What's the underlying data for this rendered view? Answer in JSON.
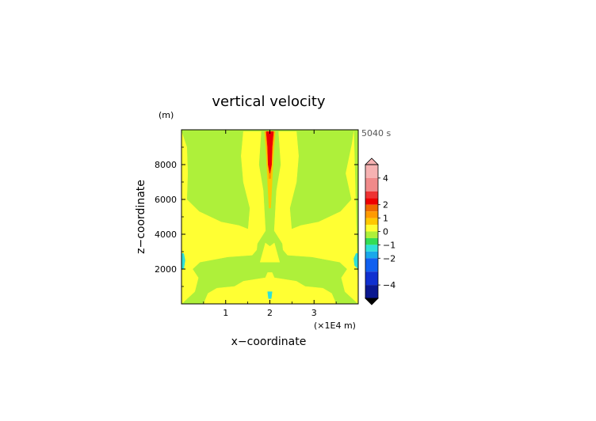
{
  "chart_data": {
    "type": "heatmap",
    "title": "vertical velocity",
    "time_label": "5040 s",
    "xlabel": "x−coordinate",
    "x_unit": "(×1E4 m)",
    "ylabel": "z−coordinate",
    "y_unit": "(m)",
    "xlim": [
      0,
      4.0
    ],
    "ylim": [
      0,
      10000
    ],
    "x_ticks": [
      {
        "value": 1,
        "label": "1"
      },
      {
        "value": 2,
        "label": "2"
      },
      {
        "value": 3,
        "label": "3"
      }
    ],
    "y_ticks": [
      {
        "value": 2000,
        "label": "2000"
      },
      {
        "value": 4000,
        "label": "4000"
      },
      {
        "value": 6000,
        "label": "6000"
      },
      {
        "value": 8000,
        "label": "8000"
      }
    ],
    "colorbar": {
      "range": [
        -5,
        5
      ],
      "labels": [
        {
          "value": 4,
          "label": "4"
        },
        {
          "value": 2,
          "label": "2"
        },
        {
          "value": 1,
          "label": "1"
        },
        {
          "value": 0,
          "label": "0"
        },
        {
          "value": -1,
          "label": "−1"
        },
        {
          "value": -2,
          "label": "−2"
        },
        {
          "value": -4,
          "label": "−4"
        }
      ],
      "levels": [
        {
          "from": 4,
          "to": 5,
          "color": "#f6b2b2"
        },
        {
          "from": 3,
          "to": 4,
          "color": "#f08a8a"
        },
        {
          "from": 2.5,
          "to": 3,
          "color": "#ee3333"
        },
        {
          "from": 2,
          "to": 2.5,
          "color": "#ee0000"
        },
        {
          "from": 1.5,
          "to": 2,
          "color": "#ee6a00"
        },
        {
          "from": 1,
          "to": 1.5,
          "color": "#ff9a00"
        },
        {
          "from": 0.5,
          "to": 1,
          "color": "#ffc800"
        },
        {
          "from": 0,
          "to": 0.5,
          "color": "#ffff33"
        },
        {
          "from": -0.5,
          "to": 0,
          "color": "#aef03a"
        },
        {
          "from": -1,
          "to": -0.5,
          "color": "#33dd55"
        },
        {
          "from": -1.5,
          "to": -1,
          "color": "#2fe0d8"
        },
        {
          "from": -2,
          "to": -1.5,
          "color": "#19a8ea"
        },
        {
          "from": -3,
          "to": -2,
          "color": "#1060f0"
        },
        {
          "from": -4,
          "to": -3,
          "color": "#1030d0"
        },
        {
          "from": -5,
          "to": -4,
          "color": "#0a1890"
        }
      ]
    },
    "field": {
      "background_color": "#aef03a",
      "regions": [
        {
          "level": "0 to 0.5",
          "color": "#ffff33",
          "points": [
            [
              0,
              9900
            ],
            [
              0.12,
              9000
            ],
            [
              0.14,
              7500
            ],
            [
              0.12,
              6000
            ],
            [
              0.4,
              5300
            ],
            [
              0.9,
              4700
            ],
            [
              1.3,
              4500
            ],
            [
              1.6,
              4200
            ],
            [
              1.72,
              3600
            ],
            [
              1.7,
              3100
            ],
            [
              1.6,
              2800
            ],
            [
              1.05,
              2700
            ],
            [
              0.42,
              2400
            ],
            [
              0.25,
              2000
            ],
            [
              0.38,
              1500
            ],
            [
              0.3,
              700
            ],
            [
              0,
              0
            ]
          ]
        },
        {
          "level": "0 to 0.5",
          "color": "#ffff33",
          "points": [
            [
              3.9,
              9900
            ],
            [
              3.86,
              9200
            ],
            [
              3.72,
              7500
            ],
            [
              3.85,
              6000
            ],
            [
              3.6,
              5300
            ],
            [
              3.1,
              4700
            ],
            [
              2.7,
              4500
            ],
            [
              2.4,
              4200
            ],
            [
              2.28,
              3600
            ],
            [
              2.3,
              3100
            ],
            [
              2.4,
              2800
            ],
            [
              2.95,
              2700
            ],
            [
              3.58,
              2400
            ],
            [
              3.75,
              2000
            ],
            [
              3.62,
              1500
            ],
            [
              3.7,
              700
            ],
            [
              4.0,
              0
            ]
          ]
        },
        {
          "level": "0 to 0.5",
          "color": "#ffff33",
          "points": [
            [
              1.4,
              9900
            ],
            [
              1.8,
              9900
            ],
            [
              1.75,
              8000
            ],
            [
              1.85,
              6500
            ],
            [
              1.9,
              4200
            ],
            [
              1.6,
              3000
            ],
            [
              1.5,
              4000
            ],
            [
              1.55,
              5500
            ],
            [
              1.4,
              7000
            ],
            [
              1.35,
              8500
            ]
          ]
        },
        {
          "level": "0 to 0.5",
          "color": "#ffff33",
          "points": [
            [
              2.2,
              9900
            ],
            [
              2.6,
              9900
            ],
            [
              2.65,
              8500
            ],
            [
              2.6,
              7000
            ],
            [
              2.45,
              5500
            ],
            [
              2.5,
              4000
            ],
            [
              2.4,
              3000
            ],
            [
              2.1,
              4200
            ],
            [
              2.15,
              6500
            ],
            [
              2.25,
              8000
            ]
          ]
        },
        {
          "level": "0 to 0.5",
          "color": "#ffff33",
          "points": [
            [
              0.5,
              0
            ],
            [
              3.5,
              0
            ],
            [
              3.4,
              600
            ],
            [
              3.2,
              900
            ],
            [
              2.8,
              1000
            ],
            [
              2.6,
              1300
            ],
            [
              2.1,
              1500
            ],
            [
              2.05,
              1800
            ],
            [
              1.95,
              1800
            ],
            [
              1.9,
              1500
            ],
            [
              1.4,
              1300
            ],
            [
              1.2,
              1000
            ],
            [
              0.8,
              900
            ],
            [
              0.6,
              600
            ]
          ]
        },
        {
          "level": "0 to 0.5",
          "color": "#ffff33",
          "points": [
            [
              1.78,
              2400
            ],
            [
              2.22,
              2400
            ],
            [
              2.1,
              3500
            ],
            [
              2.0,
              3300
            ],
            [
              1.9,
              3500
            ]
          ]
        },
        {
          "level": "0.5 to 1",
          "color": "#ffc800",
          "points": [
            [
              1.88,
              9900
            ],
            [
              2.12,
              9900
            ],
            [
              2.08,
              8500
            ],
            [
              2.05,
              7000
            ],
            [
              2.02,
              5500
            ],
            [
              1.98,
              5500
            ],
            [
              1.95,
              7000
            ],
            [
              1.92,
              8500
            ]
          ]
        },
        {
          "level": "1 to 1.5",
          "color": "#ff9a00",
          "points": [
            [
              1.9,
              9900
            ],
            [
              2.1,
              9900
            ],
            [
              2.05,
              8500
            ],
            [
              2.02,
              7200
            ],
            [
              1.98,
              7200
            ],
            [
              1.95,
              8500
            ]
          ]
        },
        {
          "level": "2 to 2.5",
          "color": "#ee0000",
          "points": [
            [
              1.92,
              9900
            ],
            [
              2.08,
              9900
            ],
            [
              2.05,
              9000
            ],
            [
              2.04,
              8000
            ],
            [
              2.0,
              7500
            ],
            [
              1.96,
              8000
            ],
            [
              1.95,
              9000
            ]
          ]
        },
        {
          "level": "-1.5 to -1",
          "color": "#2fe0d8",
          "points": [
            [
              0,
              2900
            ],
            [
              0.05,
              2900
            ],
            [
              0.08,
              2500
            ],
            [
              0.05,
              2000
            ],
            [
              0,
              2000
            ]
          ]
        },
        {
          "level": "-1.5 to -1",
          "color": "#2fe0d8",
          "points": [
            [
              3.95,
              2900
            ],
            [
              4.0,
              2900
            ],
            [
              4.0,
              2000
            ],
            [
              3.92,
              2200
            ],
            [
              3.9,
              2600
            ]
          ]
        },
        {
          "level": "-1.5 to -1",
          "color": "#2fe0d8",
          "points": [
            [
              1.95,
              700
            ],
            [
              2.05,
              700
            ],
            [
              2.03,
              300
            ],
            [
              1.97,
              300
            ]
          ]
        }
      ]
    }
  }
}
